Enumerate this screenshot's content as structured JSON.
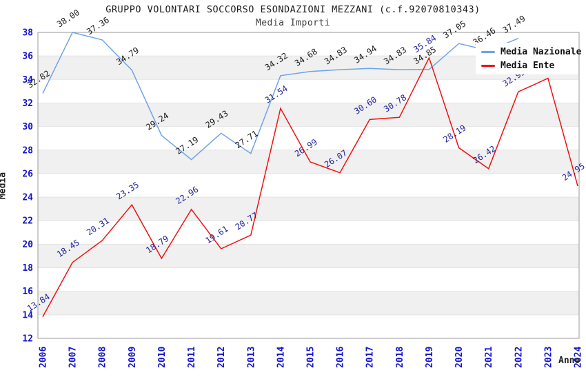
{
  "header": {
    "title": "GRUPPO VOLONTARI SOCCORSO ESONDAZIONI MEZZANI (c.f.92070810343)",
    "subtitle": "Media Importi"
  },
  "chart_data": {
    "type": "line",
    "x": [
      2006,
      2007,
      2008,
      2009,
      2010,
      2011,
      2012,
      2013,
      2014,
      2015,
      2016,
      2017,
      2018,
      2019,
      2020,
      2021,
      2022,
      2023,
      2024
    ],
    "series": [
      {
        "name": "Media Nazionale",
        "color": "#6fa3e8",
        "label_color": "#1a1a1a",
        "values": [
          32.82,
          38.0,
          37.36,
          34.79,
          29.24,
          27.19,
          29.43,
          27.71,
          34.32,
          34.68,
          34.83,
          34.94,
          34.83,
          34.85,
          37.05,
          36.46,
          37.49,
          null,
          null
        ]
      },
      {
        "name": "Media Ente",
        "color": "#ee1211",
        "label_color": "#22229c",
        "values": [
          13.84,
          18.45,
          20.31,
          23.35,
          18.79,
          22.96,
          19.61,
          20.77,
          31.54,
          26.99,
          26.07,
          30.6,
          30.78,
          35.84,
          28.19,
          26.42,
          32.95,
          34.1,
          24.95
        ]
      }
    ],
    "xlabel": "Anno",
    "ylabel": "Media",
    "ylim": [
      12,
      38
    ],
    "ytick_step": 2,
    "tick_color": "#1414cc",
    "band_color": "#f0f0f0",
    "grid": "horizontal-bands",
    "legend_position": "top-right"
  }
}
